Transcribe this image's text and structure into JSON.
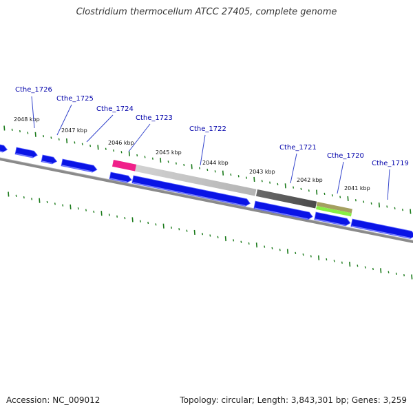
{
  "title": "Clostridium thermocellum ATCC 27405, complete genome",
  "footer": {
    "accession": "Accession: NC_009012",
    "info": "Topology: circular; Length: 3,843,301 bp; Genes: 3,259"
  },
  "colors": {
    "gene": "#0a14e6",
    "gene_edge": "#5c66ff",
    "backbone": "#777777",
    "tick": "#1a7a1a",
    "label": "#0000aa",
    "leader": "#3344cc",
    "feature_pink": "#f0208a",
    "feature_light": "#c8c8c8",
    "feature_dark": "#5a5a5a",
    "feature_olive": "#a4a060",
    "feature_lime": "#88ee44"
  },
  "kbp_marks": [
    {
      "label": "2048 kbp"
    },
    {
      "label": "2047 kbp"
    },
    {
      "label": "2046 kbp"
    },
    {
      "label": "2045 kbp"
    },
    {
      "label": "2044 kbp"
    },
    {
      "label": "2043 kbp"
    },
    {
      "label": "2042 kbp"
    },
    {
      "label": "2041 kbp"
    }
  ],
  "genes": [
    {
      "label": "Cthe_1726"
    },
    {
      "label": "Cthe_1725"
    },
    {
      "label": "Cthe_1724"
    },
    {
      "label": "Cthe_1723"
    },
    {
      "label": "Cthe_1722"
    },
    {
      "label": "Cthe_1721"
    },
    {
      "label": "Cthe_1720"
    },
    {
      "label": "Cthe_1719"
    }
  ]
}
